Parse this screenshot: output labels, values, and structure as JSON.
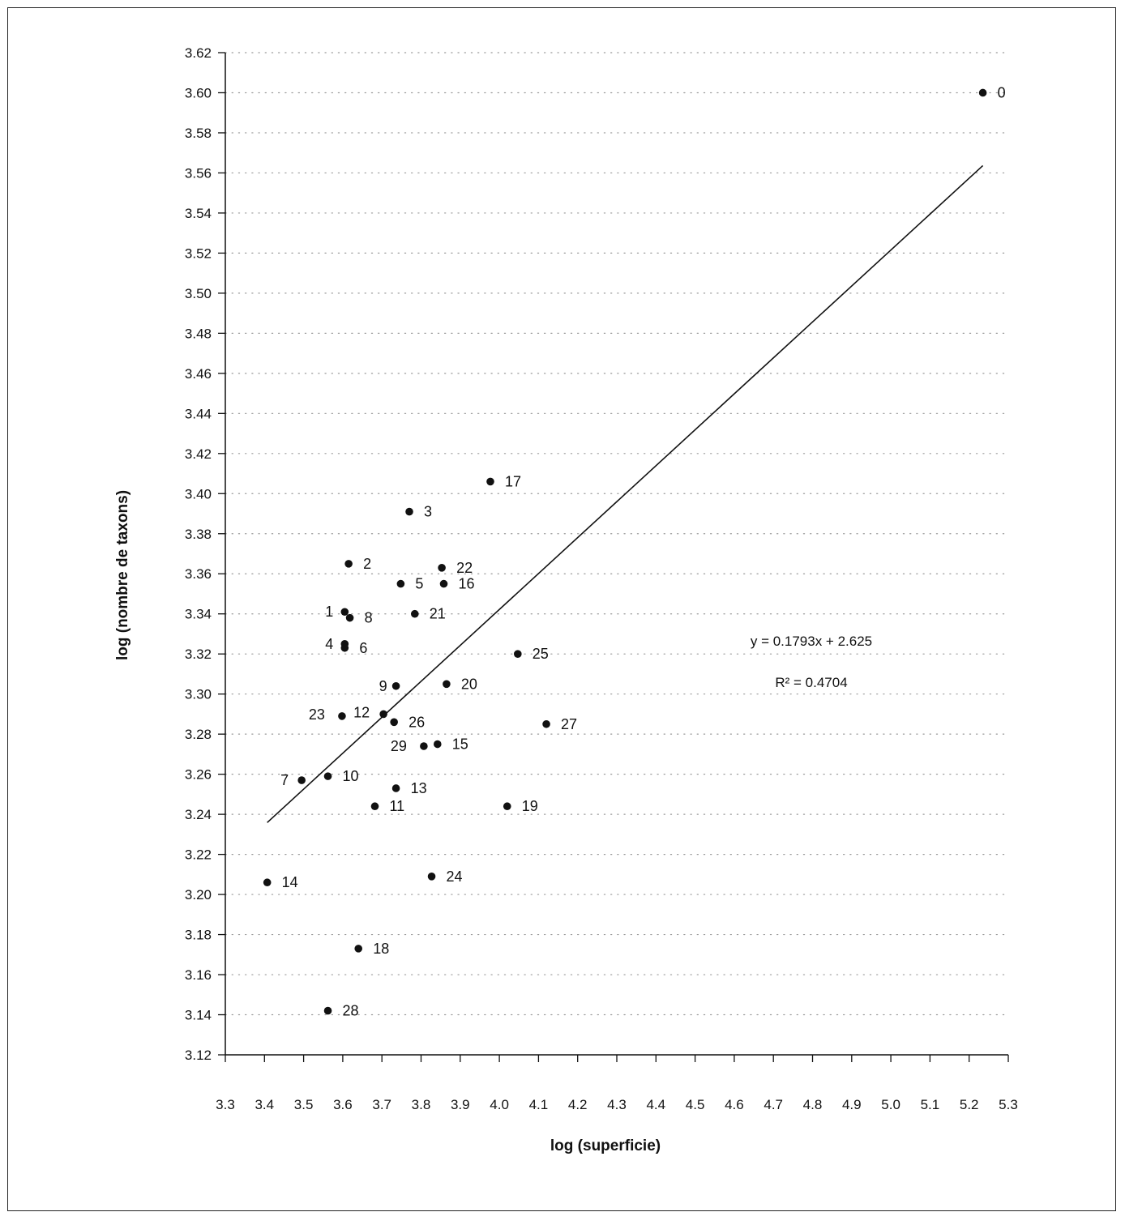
{
  "chart_data": {
    "type": "scatter",
    "title": "",
    "xlabel": "log (superficie)",
    "ylabel": "log (nombre de taxons)",
    "xlim": [
      3.3,
      5.3
    ],
    "ylim": [
      3.12,
      3.62
    ],
    "x_ticks": [
      "3.3",
      "3.4",
      "3.5",
      "3.6",
      "3.7",
      "3.8",
      "3.9",
      "4.0",
      "4.1",
      "4.2",
      "4.3",
      "4.4",
      "4.5",
      "4.6",
      "4.7",
      "4.8",
      "4.9",
      "5.0",
      "5.1",
      "5.2",
      "5.3"
    ],
    "y_ticks": [
      "3.12",
      "3.14",
      "3.16",
      "3.18",
      "3.20",
      "3.22",
      "3.24",
      "3.26",
      "3.28",
      "3.30",
      "3.32",
      "3.34",
      "3.36",
      "3.38",
      "3.40",
      "3.42",
      "3.44",
      "3.46",
      "3.48",
      "3.50",
      "3.52",
      "3.54",
      "3.56",
      "3.58",
      "3.60",
      "3.62"
    ],
    "grid": "dotted horizontal",
    "points": [
      {
        "label": "0",
        "x": 5.235,
        "y": 3.6
      },
      {
        "label": "1",
        "x": 3.605,
        "y": 3.341
      },
      {
        "label": "2",
        "x": 3.615,
        "y": 3.365
      },
      {
        "label": "3",
        "x": 3.77,
        "y": 3.391
      },
      {
        "label": "4",
        "x": 3.605,
        "y": 3.325
      },
      {
        "label": "5",
        "x": 3.748,
        "y": 3.355
      },
      {
        "label": "6",
        "x": 3.605,
        "y": 3.323
      },
      {
        "label": "7",
        "x": 3.495,
        "y": 3.257
      },
      {
        "label": "8",
        "x": 3.618,
        "y": 3.338
      },
      {
        "label": "9",
        "x": 3.736,
        "y": 3.304
      },
      {
        "label": "10",
        "x": 3.562,
        "y": 3.259
      },
      {
        "label": "11",
        "x": 3.682,
        "y": 3.244
      },
      {
        "label": "12",
        "x": 3.704,
        "y": 3.29
      },
      {
        "label": "13",
        "x": 3.736,
        "y": 3.253
      },
      {
        "label": "14",
        "x": 3.407,
        "y": 3.206
      },
      {
        "label": "15",
        "x": 3.842,
        "y": 3.275
      },
      {
        "label": "16",
        "x": 3.858,
        "y": 3.355
      },
      {
        "label": "17",
        "x": 3.977,
        "y": 3.406
      },
      {
        "label": "18",
        "x": 3.64,
        "y": 3.173
      },
      {
        "label": "19",
        "x": 4.02,
        "y": 3.244
      },
      {
        "label": "20",
        "x": 3.865,
        "y": 3.305
      },
      {
        "label": "21",
        "x": 3.784,
        "y": 3.34
      },
      {
        "label": "22",
        "x": 3.853,
        "y": 3.363
      },
      {
        "label": "23",
        "x": 3.598,
        "y": 3.289
      },
      {
        "label": "24",
        "x": 3.827,
        "y": 3.209
      },
      {
        "label": "25",
        "x": 4.047,
        "y": 3.32
      },
      {
        "label": "26",
        "x": 3.731,
        "y": 3.286
      },
      {
        "label": "27",
        "x": 4.12,
        "y": 3.285
      },
      {
        "label": "28",
        "x": 3.562,
        "y": 3.142
      },
      {
        "label": "29",
        "x": 3.807,
        "y": 3.274
      }
    ],
    "trendline": {
      "slope": 0.1793,
      "intercept": 2.625,
      "x_range": [
        3.407,
        5.235
      ]
    },
    "annotations": {
      "equation": "y = 0.1793x + 2.625",
      "r_squared": "R² = 0.4704"
    }
  },
  "colors": {
    "ink": "#111111",
    "grid": "#9a9a9a",
    "background": "#ffffff"
  }
}
